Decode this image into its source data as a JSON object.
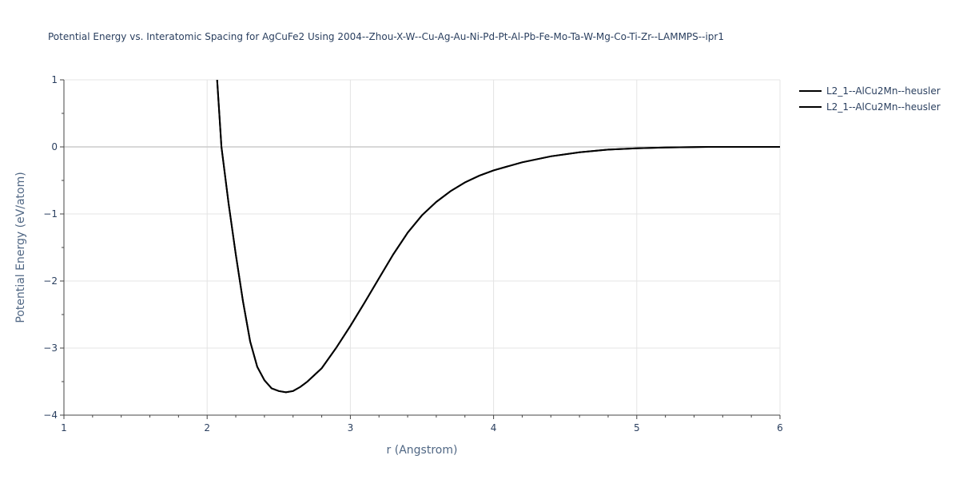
{
  "chart_data": {
    "type": "line",
    "title": "Potential Energy vs. Interatomic Spacing for AgCuFe2 Using 2004--Zhou-X-W--Cu-Ag-Au-Ni-Pd-Pt-Al-Pb-Fe-Mo-Ta-W-Mg-Co-Ti-Zr--LAMMPS--ipr1",
    "xlabel": "r (Angstrom)",
    "ylabel": "Potential Energy (eV/atom)",
    "xlim": [
      1,
      6
    ],
    "ylim": [
      -4,
      1
    ],
    "x_ticks": [
      "1",
      "2",
      "3",
      "4",
      "5",
      "6"
    ],
    "y_ticks": [
      "1",
      "0",
      "−1",
      "−2",
      "−3",
      "−4"
    ],
    "grid": true,
    "legend_position": "top-right",
    "series": [
      {
        "name": "L2_1--AlCu2Mn--heusler",
        "color": "#000000",
        "x": [
          2.07,
          2.1,
          2.15,
          2.2,
          2.25,
          2.3,
          2.35,
          2.4,
          2.45,
          2.5,
          2.55,
          2.6,
          2.65,
          2.7,
          2.75,
          2.8,
          2.9,
          3.0,
          3.1,
          3.2,
          3.3,
          3.4,
          3.5,
          3.6,
          3.7,
          3.8,
          3.9,
          4.0,
          4.2,
          4.4,
          4.6,
          4.8,
          5.0,
          5.2,
          5.5,
          6.0
        ],
        "y": [
          1.0,
          0.0,
          -0.85,
          -1.6,
          -2.3,
          -2.9,
          -3.28,
          -3.48,
          -3.6,
          -3.64,
          -3.66,
          -3.64,
          -3.58,
          -3.5,
          -3.4,
          -3.3,
          -3.0,
          -2.67,
          -2.32,
          -1.96,
          -1.6,
          -1.28,
          -1.02,
          -0.82,
          -0.66,
          -0.53,
          -0.43,
          -0.35,
          -0.23,
          -0.14,
          -0.08,
          -0.04,
          -0.02,
          -0.01,
          0.0,
          0.0
        ]
      },
      {
        "name": "L2_1--AlCu2Mn--heusler",
        "color": "#000000",
        "x": [
          2.07,
          2.1,
          2.15,
          2.2,
          2.25,
          2.3,
          2.35,
          2.4,
          2.45,
          2.5,
          2.55,
          2.6,
          2.65,
          2.7,
          2.75,
          2.8,
          2.9,
          3.0,
          3.1,
          3.2,
          3.3,
          3.4,
          3.5,
          3.6,
          3.7,
          3.8,
          3.9,
          4.0,
          4.2,
          4.4,
          4.6,
          4.8,
          5.0,
          5.2,
          5.5,
          6.0
        ],
        "y": [
          1.0,
          0.0,
          -0.85,
          -1.6,
          -2.3,
          -2.9,
          -3.28,
          -3.48,
          -3.6,
          -3.64,
          -3.66,
          -3.64,
          -3.58,
          -3.5,
          -3.4,
          -3.3,
          -3.0,
          -2.67,
          -2.32,
          -1.96,
          -1.6,
          -1.28,
          -1.02,
          -0.82,
          -0.66,
          -0.53,
          -0.43,
          -0.35,
          -0.23,
          -0.14,
          -0.08,
          -0.04,
          -0.02,
          -0.01,
          0.0,
          0.0
        ]
      }
    ]
  }
}
